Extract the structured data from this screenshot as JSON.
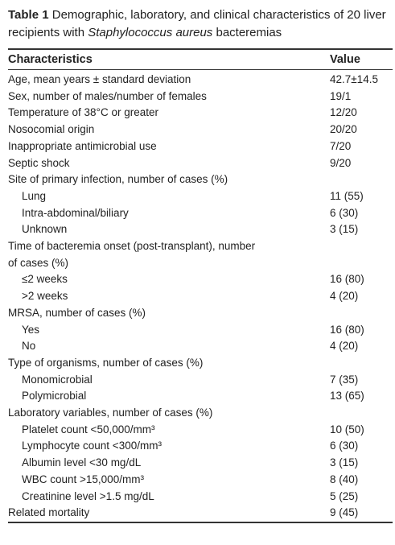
{
  "title": {
    "label": "Table 1",
    "text_before": "Demographic, laboratory, and clinical characteristics of 20 liver recipients with",
    "italic": "Staphylococcus aureus",
    "text_after": "bacteremias"
  },
  "table": {
    "header": [
      "Characteristics",
      "Value"
    ],
    "rows": [
      {
        "label": "Age, mean years ± standard deviation",
        "value": "42.7±14.5"
      },
      {
        "label": "Sex, number of males/number of females",
        "value": "19/1"
      },
      {
        "label": "Temperature of 38°C or greater",
        "value": "12/20"
      },
      {
        "label": "Nosocomial origin",
        "value": "20/20"
      },
      {
        "label": "Inappropriate antimicrobial use",
        "value": "7/20"
      },
      {
        "label": "Septic shock",
        "value": "9/20"
      },
      {
        "label": "Site of primary infection, number of cases (%)",
        "items": [
          {
            "label": "Lung",
            "value": "11 (55)"
          },
          {
            "label": "Intra-abdominal/biliary",
            "value": "6 (30)"
          },
          {
            "label": "Unknown",
            "value": "3 (15)"
          }
        ]
      },
      {
        "label": "Time of bacteremia onset (post-transplant), number of cases (%)",
        "items": [
          {
            "label": "≤2 weeks",
            "value": "16 (80)"
          },
          {
            "label": ">2 weeks",
            "value": "4 (20)"
          }
        ]
      },
      {
        "label": "MRSA, number of cases (%)",
        "items": [
          {
            "label": "Yes",
            "value": "16 (80)"
          },
          {
            "label": "No",
            "value": "4 (20)"
          }
        ]
      },
      {
        "label": "Type of organisms, number of cases (%)",
        "items": [
          {
            "label": "Monomicrobial",
            "value": "7 (35)"
          },
          {
            "label": "Polymicrobial",
            "value": "13 (65)"
          }
        ]
      },
      {
        "label": "Laboratory variables, number of cases (%)",
        "items": [
          {
            "label": "Platelet count <50,000/mm³",
            "value": "10 (50)"
          },
          {
            "label": "Lymphocyte count <300/mm³",
            "value": "6 (30)"
          },
          {
            "label": "Albumin level <30 mg/dL",
            "value": "3 (15)"
          },
          {
            "label": "WBC count >15,000/mm³",
            "value": "8 (40)"
          },
          {
            "label": "Creatinine level >1.5 mg/dL",
            "value": "5 (25)"
          }
        ]
      },
      {
        "label": "Related mortality",
        "value": "9 (45)"
      }
    ]
  }
}
